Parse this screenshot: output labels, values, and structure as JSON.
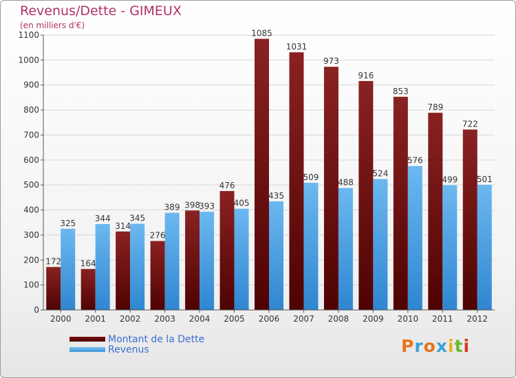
{
  "header": {
    "title": "Revenus/Dette - GIMEUX",
    "subtitle": "(en milliers d'€)"
  },
  "legend": {
    "debt_label": "Montant de la Dette",
    "revenue_label": "Revenus"
  },
  "logo": {
    "text": "Proxiti",
    "colors": [
      "#e8731a",
      "#3aa0d8",
      "#e8731a",
      "#3aa0d8",
      "#e8b21a",
      "#6ab82e",
      "#d8341a"
    ]
  },
  "colors": {
    "debt": "#6b0a0a",
    "revenue": "#4aa3e8",
    "title": "#b03068",
    "legend_text": "#3b6fd0"
  },
  "chart_data": {
    "type": "bar",
    "title": "Revenus/Dette - GIMEUX",
    "subtitle": "(en milliers d'€)",
    "categories": [
      "2000",
      "2001",
      "2002",
      "2003",
      "2004",
      "2005",
      "2006",
      "2007",
      "2008",
      "2009",
      "2010",
      "2011",
      "2012"
    ],
    "series": [
      {
        "name": "Montant de la Dette",
        "values": [
          172,
          164,
          314,
          276,
          398,
          476,
          1085,
          1031,
          973,
          916,
          853,
          789,
          722
        ]
      },
      {
        "name": "Revenus",
        "values": [
          325,
          344,
          345,
          389,
          393,
          405,
          435,
          509,
          488,
          524,
          576,
          499,
          501
        ]
      }
    ],
    "ylim": [
      0,
      1100
    ],
    "yticks": [
      0,
      100,
      200,
      300,
      400,
      500,
      600,
      700,
      800,
      900,
      1000,
      1100
    ],
    "grid": true,
    "legend_position": "bottom-left"
  }
}
